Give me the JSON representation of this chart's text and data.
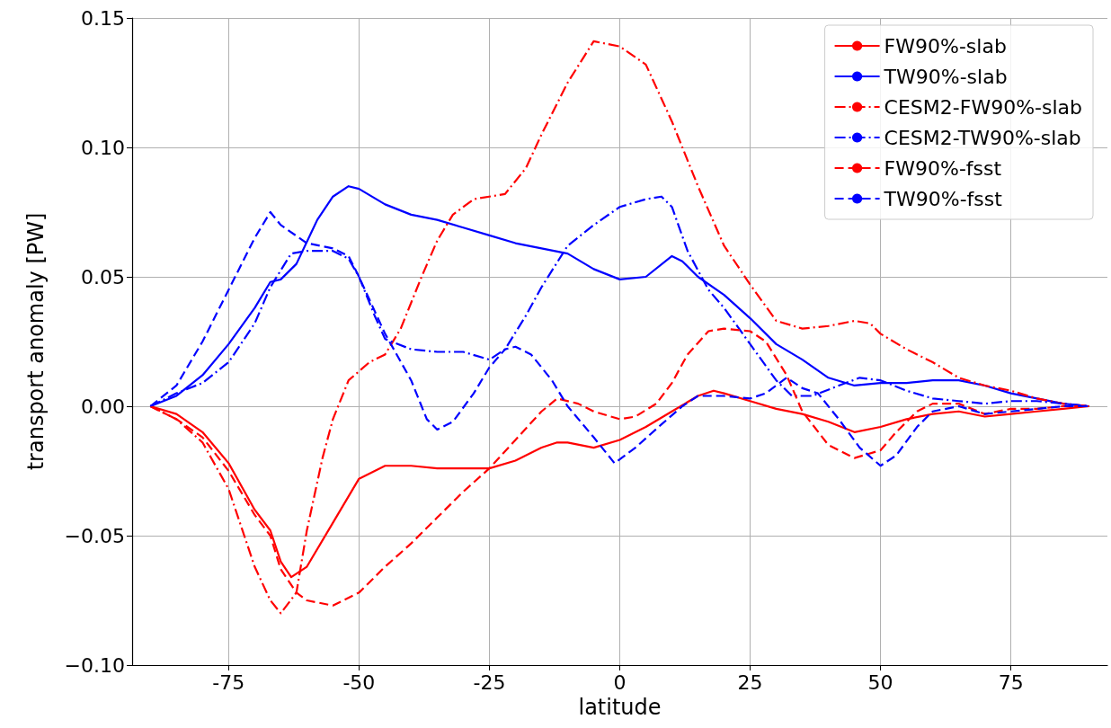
{
  "chart_data": {
    "type": "line",
    "xlabel": "latitude",
    "ylabel": "transport anomaly [PW]",
    "xlim": [
      -93.5,
      93.5
    ],
    "ylim": [
      -0.1,
      0.15
    ],
    "xticks": [
      -75,
      -50,
      -25,
      0,
      25,
      50,
      75
    ],
    "yticks": [
      {
        "value": -0.1,
        "label": "−0.10"
      },
      {
        "value": -0.05,
        "label": "−0.05"
      },
      {
        "value": 0,
        "label": "0.00"
      },
      {
        "value": 0.05,
        "label": "0.05"
      },
      {
        "value": 0.1,
        "label": "0.10"
      },
      {
        "value": 0.15,
        "label": "0.15"
      }
    ],
    "grid": true,
    "legend": "top right",
    "series": [
      {
        "name": "FW90%-slab",
        "color": "#ff0000",
        "line_style": "solid",
        "x": [
          -90,
          -85,
          -80,
          -75,
          -70,
          -67,
          -65,
          -63,
          -60,
          -55,
          -50,
          -45,
          -40,
          -35,
          -30,
          -25,
          -20,
          -15,
          -12,
          -10,
          -5,
          0,
          5,
          10,
          15,
          18,
          20,
          25,
          30,
          35,
          40,
          45,
          50,
          55,
          60,
          65,
          70,
          75,
          80,
          85,
          90
        ],
        "values": [
          0,
          -0.003,
          -0.01,
          -0.022,
          -0.04,
          -0.048,
          -0.06,
          -0.066,
          -0.062,
          -0.045,
          -0.028,
          -0.023,
          -0.023,
          -0.024,
          -0.024,
          -0.024,
          -0.021,
          -0.016,
          -0.014,
          -0.014,
          -0.016,
          -0.013,
          -0.008,
          -0.002,
          0.004,
          0.006,
          0.005,
          0.002,
          -0.001,
          -0.003,
          -0.006,
          -0.01,
          -0.008,
          -0.005,
          -0.003,
          -0.002,
          -0.004,
          -0.003,
          -0.002,
          -0.001,
          0
        ]
      },
      {
        "name": "TW90%-slab",
        "color": "#0000ff",
        "line_style": "solid",
        "x": [
          -90,
          -85,
          -80,
          -75,
          -70,
          -67,
          -65,
          -62,
          -58,
          -55,
          -52,
          -50,
          -45,
          -40,
          -35,
          -30,
          -25,
          -20,
          -15,
          -10,
          -5,
          0,
          5,
          10,
          12,
          15,
          20,
          25,
          30,
          35,
          40,
          45,
          50,
          55,
          60,
          65,
          70,
          75,
          80,
          85,
          90
        ],
        "values": [
          0,
          0.004,
          0.012,
          0.024,
          0.038,
          0.048,
          0.049,
          0.055,
          0.072,
          0.081,
          0.085,
          0.084,
          0.078,
          0.074,
          0.072,
          0.069,
          0.066,
          0.063,
          0.061,
          0.059,
          0.053,
          0.049,
          0.05,
          0.058,
          0.056,
          0.05,
          0.043,
          0.034,
          0.024,
          0.018,
          0.011,
          0.008,
          0.009,
          0.009,
          0.01,
          0.01,
          0.008,
          0.005,
          0.003,
          0.001,
          0
        ]
      },
      {
        "name": "CESM2-FW90%-slab",
        "color": "#ff0000",
        "line_style": "dashdot",
        "x": [
          -90,
          -85,
          -80,
          -75,
          -70,
          -67,
          -65,
          -62,
          -60,
          -57,
          -55,
          -52,
          -48,
          -45,
          -42,
          -38,
          -35,
          -32,
          -28,
          -22,
          -18,
          -15,
          -10,
          -5,
          0,
          5,
          10,
          15,
          20,
          25,
          30,
          35,
          40,
          45,
          48,
          50,
          55,
          60,
          65,
          70,
          75,
          80,
          85,
          90
        ],
        "values": [
          0,
          -0.005,
          -0.014,
          -0.032,
          -0.062,
          -0.075,
          -0.08,
          -0.072,
          -0.048,
          -0.02,
          -0.005,
          0.01,
          0.017,
          0.02,
          0.03,
          0.05,
          0.064,
          0.074,
          0.08,
          0.082,
          0.092,
          0.105,
          0.125,
          0.141,
          0.139,
          0.132,
          0.11,
          0.085,
          0.062,
          0.047,
          0.033,
          0.03,
          0.031,
          0.033,
          0.032,
          0.028,
          0.022,
          0.017,
          0.011,
          0.008,
          0.006,
          0.003,
          0.001,
          0
        ]
      },
      {
        "name": "CESM2-TW90%-slab",
        "color": "#0000ff",
        "line_style": "dashdot",
        "x": [
          -90,
          -85,
          -80,
          -75,
          -70,
          -67,
          -63,
          -60,
          -55,
          -52,
          -50,
          -47,
          -45,
          -40,
          -35,
          -30,
          -25,
          -22,
          -18,
          -15,
          -10,
          -5,
          0,
          5,
          8,
          10,
          13,
          17,
          20,
          25,
          30,
          33,
          37,
          42,
          46,
          50,
          55,
          60,
          65,
          70,
          75,
          80,
          85,
          90
        ],
        "values": [
          0,
          0.005,
          0.009,
          0.017,
          0.032,
          0.046,
          0.059,
          0.06,
          0.06,
          0.057,
          0.05,
          0.035,
          0.026,
          0.022,
          0.021,
          0.021,
          0.018,
          0.022,
          0.035,
          0.046,
          0.062,
          0.07,
          0.077,
          0.08,
          0.081,
          0.077,
          0.06,
          0.045,
          0.038,
          0.024,
          0.01,
          0.004,
          0.004,
          0.008,
          0.011,
          0.01,
          0.006,
          0.003,
          0.002,
          0.001,
          0.002,
          0.002,
          0.001,
          0
        ]
      },
      {
        "name": "FW90%-fsst",
        "color": "#ff0000",
        "line_style": "dashed",
        "x": [
          -90,
          -85,
          -80,
          -75,
          -70,
          -67,
          -65,
          -62,
          -60,
          -55,
          -50,
          -45,
          -40,
          -35,
          -30,
          -25,
          -20,
          -15,
          -12,
          -8,
          -5,
          0,
          3,
          7,
          10,
          13,
          17,
          20,
          25,
          28,
          32,
          35,
          40,
          45,
          50,
          53,
          57,
          60,
          65,
          70,
          75,
          80,
          85,
          90
        ],
        "values": [
          0,
          -0.005,
          -0.012,
          -0.025,
          -0.042,
          -0.05,
          -0.063,
          -0.072,
          -0.075,
          -0.077,
          -0.072,
          -0.062,
          -0.053,
          -0.043,
          -0.033,
          -0.024,
          -0.013,
          -0.002,
          0.003,
          0.001,
          -0.002,
          -0.005,
          -0.004,
          0.001,
          0.009,
          0.02,
          0.029,
          0.03,
          0.029,
          0.025,
          0.012,
          -0.002,
          -0.015,
          -0.02,
          -0.017,
          -0.01,
          -0.002,
          0.001,
          0.001,
          -0.003,
          -0.001,
          -0.001,
          0,
          0
        ]
      },
      {
        "name": "TW90%-fsst",
        "color": "#0000ff",
        "line_style": "dashed",
        "x": [
          -90,
          -85,
          -80,
          -75,
          -70,
          -67,
          -65,
          -60,
          -55,
          -52,
          -50,
          -45,
          -40,
          -37,
          -35,
          -32,
          -28,
          -25,
          -22,
          -20,
          -17,
          -13,
          -10,
          -5,
          -1,
          3,
          8,
          12,
          15,
          20,
          25,
          28,
          32,
          35,
          38,
          42,
          46,
          50,
          53,
          57,
          60,
          65,
          70,
          75,
          80,
          85,
          90
        ],
        "values": [
          0,
          0.008,
          0.025,
          0.045,
          0.065,
          0.075,
          0.07,
          0.063,
          0.061,
          0.058,
          0.05,
          0.028,
          0.01,
          -0.005,
          -0.009,
          -0.006,
          0.005,
          0.015,
          0.022,
          0.023,
          0.02,
          0.01,
          0,
          -0.012,
          -0.022,
          -0.016,
          -0.007,
          0,
          0.004,
          0.004,
          0.003,
          0.005,
          0.011,
          0.007,
          0.005,
          -0.005,
          -0.016,
          -0.023,
          -0.019,
          -0.008,
          -0.002,
          0,
          -0.003,
          -0.002,
          -0.001,
          0,
          0
        ]
      }
    ]
  }
}
